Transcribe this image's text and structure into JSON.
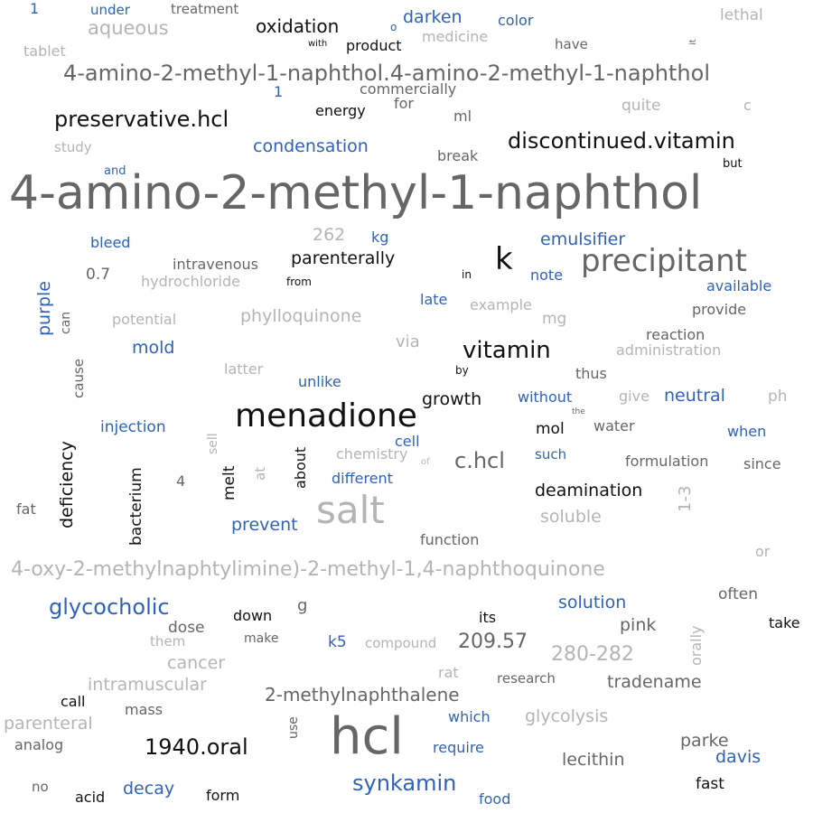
{
  "colors": {
    "black": "#111111",
    "dark": "#666666",
    "light": "#b4b4b4",
    "blue": "#2f62b8"
  },
  "words": [
    {
      "text": "4-amino-2-methyl-1-naphthol",
      "color": "dark",
      "size": 52
    },
    {
      "text": "4-amino-2-methyl-1-naphthol.4-amino-2-methyl-1-naphthol",
      "color": "dark",
      "size": 24
    },
    {
      "text": "4-oxy-2-methylnaphtylimine)-2-methyl-1,4-naphthoquinone",
      "color": "light",
      "size": 22
    },
    {
      "text": "hcl",
      "color": "dark",
      "size": 56
    },
    {
      "text": "menadione",
      "color": "black",
      "size": 36
    },
    {
      "text": "salt",
      "color": "light",
      "size": 42
    },
    {
      "text": "precipitant",
      "color": "dark",
      "size": 34
    },
    {
      "text": "k",
      "color": "black",
      "size": 34
    },
    {
      "text": "vitamin",
      "color": "black",
      "size": 26
    },
    {
      "text": "discontinued.vitamin",
      "color": "black",
      "size": 24
    },
    {
      "text": "preservative.hcl",
      "color": "black",
      "size": 24
    },
    {
      "text": "glycocholic",
      "color": "blue",
      "size": 24
    },
    {
      "text": "synkamin",
      "color": "blue",
      "size": 24
    },
    {
      "text": "1940.oral",
      "color": "black",
      "size": 24
    },
    {
      "text": "c.hcl",
      "color": "dark",
      "size": 24
    },
    {
      "text": "209.57",
      "color": "dark",
      "size": 22
    },
    {
      "text": "280-282",
      "color": "light",
      "size": 22
    },
    {
      "text": "2-methylnaphthalene",
      "color": "dark",
      "size": 20
    },
    {
      "text": "oxidation",
      "color": "black",
      "size": 20
    },
    {
      "text": "darken",
      "color": "blue",
      "size": 19
    },
    {
      "text": "aqueous",
      "color": "light",
      "size": 21
    },
    {
      "text": "condensation",
      "color": "blue",
      "size": 19
    },
    {
      "text": "deficiency",
      "color": "black",
      "size": 19
    },
    {
      "text": "growth",
      "color": "black",
      "size": 19
    },
    {
      "text": "deamination",
      "color": "black",
      "size": 19
    },
    {
      "text": "parenterally",
      "color": "black",
      "size": 19
    },
    {
      "text": "emulsifier",
      "color": "blue",
      "size": 19
    },
    {
      "text": "phylloquinone",
      "color": "light",
      "size": 19
    },
    {
      "text": "tradename",
      "color": "dark",
      "size": 19
    },
    {
      "text": "lecithin",
      "color": "dark",
      "size": 19
    },
    {
      "text": "parke",
      "color": "dark",
      "size": 19
    },
    {
      "text": "davis",
      "color": "blue",
      "size": 19
    },
    {
      "text": "glycolysis",
      "color": "light",
      "size": 19
    },
    {
      "text": "parenteral",
      "color": "light",
      "size": 19
    },
    {
      "text": "intramuscular",
      "color": "light",
      "size": 19
    },
    {
      "text": "decay",
      "color": "blue",
      "size": 19
    },
    {
      "text": "solution",
      "color": "blue",
      "size": 19
    },
    {
      "text": "pink",
      "color": "dark",
      "size": 19
    },
    {
      "text": "cancer",
      "color": "light",
      "size": 19
    },
    {
      "text": "prevent",
      "color": "blue",
      "size": 19
    },
    {
      "text": "mold",
      "color": "blue",
      "size": 19
    },
    {
      "text": "soluble",
      "color": "light",
      "size": 19
    },
    {
      "text": "262",
      "color": "light",
      "size": 19
    },
    {
      "text": "neutral",
      "color": "blue",
      "size": 19
    },
    {
      "text": "purple",
      "color": "blue",
      "size": 19
    },
    {
      "text": "bacterium",
      "color": "black",
      "size": 17
    },
    {
      "text": "melt",
      "color": "black",
      "size": 17
    },
    {
      "text": "mol",
      "color": "black",
      "size": 17
    },
    {
      "text": "k5",
      "color": "blue",
      "size": 17
    },
    {
      "text": "0.7",
      "color": "dark",
      "size": 17
    },
    {
      "text": "intravenous",
      "color": "dark",
      "size": 16
    },
    {
      "text": "hydrochloride",
      "color": "light",
      "size": 16
    },
    {
      "text": "potential",
      "color": "light",
      "size": 16
    },
    {
      "text": "fat",
      "color": "dark",
      "size": 16
    },
    {
      "text": "4",
      "color": "dark",
      "size": 16
    },
    {
      "text": "bleed",
      "color": "blue",
      "size": 16
    },
    {
      "text": "kg",
      "color": "blue",
      "size": 16
    },
    {
      "text": "note",
      "color": "blue",
      "size": 16
    },
    {
      "text": "available",
      "color": "blue",
      "size": 16
    },
    {
      "text": "late",
      "color": "blue",
      "size": 16
    },
    {
      "text": "example",
      "color": "light",
      "size": 16
    },
    {
      "text": "provide",
      "color": "dark",
      "size": 16
    },
    {
      "text": "reaction",
      "color": "dark",
      "size": 16
    },
    {
      "text": "administration",
      "color": "light",
      "size": 16
    },
    {
      "text": "via",
      "color": "light",
      "size": 18
    },
    {
      "text": "mg",
      "color": "light",
      "size": 17
    },
    {
      "text": "thus",
      "color": "dark",
      "size": 16
    },
    {
      "text": "latter",
      "color": "light",
      "size": 16
    },
    {
      "text": "unlike",
      "color": "blue",
      "size": 16
    },
    {
      "text": "without",
      "color": "blue",
      "size": 16
    },
    {
      "text": "give",
      "color": "light",
      "size": 16
    },
    {
      "text": "ph",
      "color": "light",
      "size": 17
    },
    {
      "text": "water",
      "color": "dark",
      "size": 16
    },
    {
      "text": "when",
      "color": "blue",
      "size": 16
    },
    {
      "text": "injection",
      "color": "blue",
      "size": 17
    },
    {
      "text": "cell",
      "color": "blue",
      "size": 16
    },
    {
      "text": "chemistry",
      "color": "light",
      "size": 16
    },
    {
      "text": "different",
      "color": "blue",
      "size": 16
    },
    {
      "text": "such",
      "color": "blue",
      "size": 15
    },
    {
      "text": "formulation",
      "color": "dark",
      "size": 16
    },
    {
      "text": "since",
      "color": "dark",
      "size": 16
    },
    {
      "text": "function",
      "color": "dark",
      "size": 16
    },
    {
      "text": "or",
      "color": "light",
      "size": 16
    },
    {
      "text": "often",
      "color": "dark",
      "size": 17
    },
    {
      "text": "take",
      "color": "black",
      "size": 16
    },
    {
      "text": "its",
      "color": "black",
      "size": 16
    },
    {
      "text": "dose",
      "color": "dark",
      "size": 17
    },
    {
      "text": "down",
      "color": "black",
      "size": 16
    },
    {
      "text": "g",
      "color": "dark",
      "size": 18
    },
    {
      "text": "make",
      "color": "dark",
      "size": 14
    },
    {
      "text": "them",
      "color": "light",
      "size": 15
    },
    {
      "text": "compound",
      "color": "light",
      "size": 15
    },
    {
      "text": "rat",
      "color": "light",
      "size": 16
    },
    {
      "text": "research",
      "color": "dark",
      "size": 15
    },
    {
      "text": "call",
      "color": "black",
      "size": 16
    },
    {
      "text": "mass",
      "color": "dark",
      "size": 16
    },
    {
      "text": "which",
      "color": "blue",
      "size": 16
    },
    {
      "text": "require",
      "color": "blue",
      "size": 16
    },
    {
      "text": "analog",
      "color": "dark",
      "size": 16
    },
    {
      "text": "no",
      "color": "dark",
      "size": 15
    },
    {
      "text": "acid",
      "color": "black",
      "size": 16
    },
    {
      "text": "form",
      "color": "black",
      "size": 16
    },
    {
      "text": "food",
      "color": "blue",
      "size": 16
    },
    {
      "text": "fast",
      "color": "black",
      "size": 17
    },
    {
      "text": "use",
      "color": "dark",
      "size": 14
    },
    {
      "text": "break",
      "color": "dark",
      "size": 16
    },
    {
      "text": "study",
      "color": "light",
      "size": 15
    },
    {
      "text": "and",
      "color": "blue",
      "size": 13
    },
    {
      "text": "energy",
      "color": "black",
      "size": 16
    },
    {
      "text": "for",
      "color": "dark",
      "size": 16
    },
    {
      "text": "ml",
      "color": "dark",
      "size": 16
    },
    {
      "text": "quite",
      "color": "light",
      "size": 17
    },
    {
      "text": "c",
      "color": "light",
      "size": 16
    },
    {
      "text": "but",
      "color": "black",
      "size": 13
    },
    {
      "text": "commercially",
      "color": "dark",
      "size": 16
    },
    {
      "text": "1",
      "color": "blue",
      "size": 16
    },
    {
      "text": "product",
      "color": "black",
      "size": 16
    },
    {
      "text": "with",
      "color": "black",
      "size": 10
    },
    {
      "text": "medicine",
      "color": "light",
      "size": 16
    },
    {
      "text": "have",
      "color": "dark",
      "size": 15
    },
    {
      "text": "it",
      "color": "dark",
      "size": 10
    },
    {
      "text": "tablet",
      "color": "light",
      "size": 16
    },
    {
      "text": "lethal",
      "color": "light",
      "size": 17
    },
    {
      "text": "color",
      "color": "blue",
      "size": 16
    },
    {
      "text": "under",
      "color": "blue",
      "size": 15
    },
    {
      "text": "treatment",
      "color": "dark",
      "size": 15
    },
    {
      "text": "1",
      "color": "blue",
      "size": 16
    },
    {
      "text": "o",
      "color": "blue",
      "size": 12
    },
    {
      "text": "from",
      "color": "black",
      "size": 12
    },
    {
      "text": "in",
      "color": "black",
      "size": 12
    },
    {
      "text": "by",
      "color": "black",
      "size": 12
    },
    {
      "text": "the",
      "color": "dark",
      "size": 9
    },
    {
      "text": "of",
      "color": "light",
      "size": 10
    },
    {
      "text": "at",
      "color": "light",
      "size": 15
    },
    {
      "text": "about",
      "color": "black",
      "size": 16
    },
    {
      "text": "sell",
      "color": "light",
      "size": 14
    },
    {
      "text": "cause",
      "color": "dark",
      "size": 15
    },
    {
      "text": "can",
      "color": "dark",
      "size": 14
    },
    {
      "text": "1-3",
      "color": "light",
      "size": 18
    },
    {
      "text": "orally",
      "color": "light",
      "size": 16
    }
  ]
}
